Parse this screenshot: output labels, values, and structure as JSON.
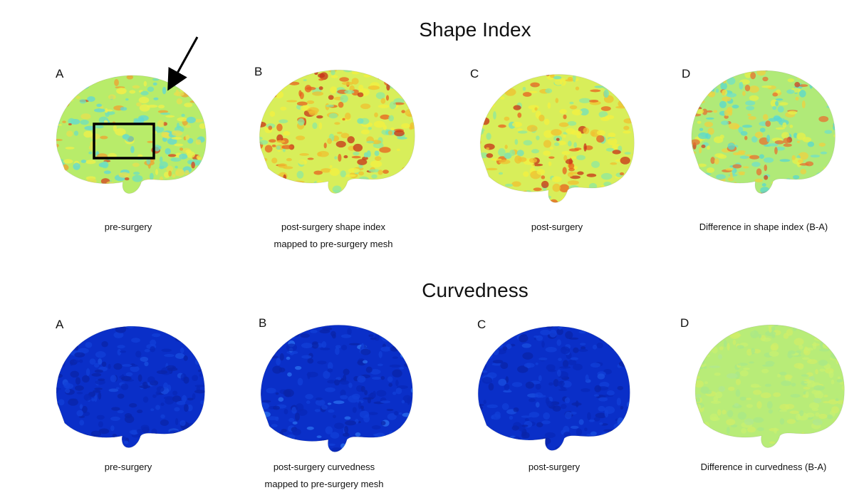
{
  "sections": [
    {
      "title": "Shape Index",
      "panels": [
        {
          "letter": "A",
          "caption": [
            "pre-surgery"
          ]
        },
        {
          "letter": "B",
          "caption": [
            "post-surgery shape index",
            "mapped to pre-surgery mesh"
          ]
        },
        {
          "letter": "C",
          "caption": [
            "post-surgery"
          ]
        },
        {
          "letter": "D",
          "caption": [
            "Difference in shape index (B-A)"
          ]
        }
      ]
    },
    {
      "title": "Curvedness",
      "panels": [
        {
          "letter": "A",
          "caption": [
            "pre-surgery"
          ]
        },
        {
          "letter": "B",
          "caption": [
            "post-surgery curvedness",
            "mapped to pre-surgery mesh"
          ]
        },
        {
          "letter": "C",
          "caption": [
            "post-surgery"
          ]
        },
        {
          "letter": "D",
          "caption": [
            "Difference in curvedness (B-A)"
          ]
        }
      ]
    }
  ]
}
